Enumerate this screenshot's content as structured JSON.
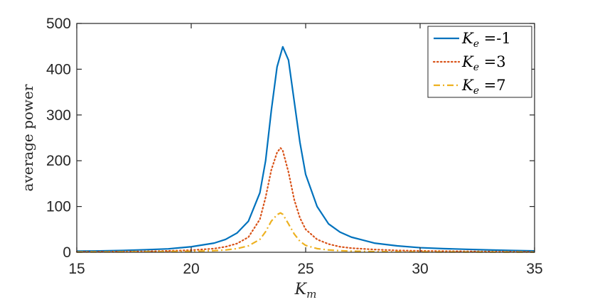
{
  "chart_data": {
    "type": "line",
    "xlabel": {
      "main": "K",
      "sub": "m"
    },
    "ylabel": "average power",
    "xlim": [
      15,
      35
    ],
    "ylim": [
      0,
      500
    ],
    "x_ticks": [
      "15",
      "20",
      "25",
      "30",
      "35"
    ],
    "y_ticks": [
      "0",
      "100",
      "200",
      "300",
      "400",
      "500"
    ],
    "grid": false,
    "legend_position": "top-right",
    "series": [
      {
        "name": "K_e =-1",
        "legend": {
          "main": "K",
          "sub": "e",
          "value": " =-1"
        },
        "color": "#0072BD",
        "style": "solid",
        "x": [
          15,
          16,
          17,
          18,
          19,
          20,
          21,
          21.5,
          22,
          22.5,
          23,
          23.25,
          23.5,
          23.75,
          24,
          24.25,
          24.5,
          24.75,
          25,
          25.5,
          26,
          26.5,
          27,
          28,
          29,
          30,
          31,
          32,
          33,
          34,
          35
        ],
        "y": [
          2.5,
          3,
          4,
          5.5,
          7.5,
          12,
          20,
          28,
          42,
          68,
          130,
          200,
          310,
          405,
          449,
          420,
          330,
          240,
          170,
          100,
          62,
          44,
          33,
          20,
          14,
          10,
          8,
          6.5,
          5,
          4,
          3
        ]
      },
      {
        "name": "K_e =3",
        "legend": {
          "main": "K",
          "sub": "e",
          "value": " =3"
        },
        "color": "#D95319",
        "style": "dotted",
        "x": [
          15,
          16,
          17,
          18,
          19,
          20,
          21,
          21.5,
          22,
          22.5,
          23,
          23.25,
          23.5,
          23.75,
          23.9,
          24,
          24.25,
          24.5,
          24.75,
          25,
          25.5,
          26,
          26.5,
          27,
          28,
          29,
          30,
          31,
          32,
          33,
          34,
          35
        ],
        "y": [
          1,
          1.2,
          1.5,
          2,
          3,
          4.5,
          8,
          12,
          19,
          33,
          72,
          120,
          180,
          218,
          228,
          222,
          175,
          115,
          75,
          50,
          28,
          18,
          12,
          9,
          6,
          4,
          3,
          2.5,
          2,
          1.5,
          1.2,
          1
        ]
      },
      {
        "name": "K_e =7",
        "legend": {
          "main": "K",
          "sub": "e",
          "value": " =7"
        },
        "color": "#EDB120",
        "style": "dashed",
        "x": [
          15,
          16,
          17,
          18,
          19,
          20,
          21,
          21.5,
          22,
          22.5,
          23,
          23.25,
          23.5,
          23.75,
          23.9,
          24,
          24.25,
          24.5,
          24.75,
          25,
          25.5,
          26,
          26.5,
          27,
          28,
          29,
          30,
          31,
          32,
          33,
          34,
          35
        ],
        "y": [
          0.5,
          0.6,
          0.8,
          1,
          1.5,
          2,
          3.5,
          5,
          8,
          14,
          28,
          45,
          68,
          82,
          86,
          83,
          62,
          40,
          24,
          15,
          8,
          5,
          3.5,
          2.5,
          1.5,
          1,
          0.8,
          0.6,
          0.5,
          0.4,
          0.4,
          0.3
        ]
      }
    ]
  }
}
